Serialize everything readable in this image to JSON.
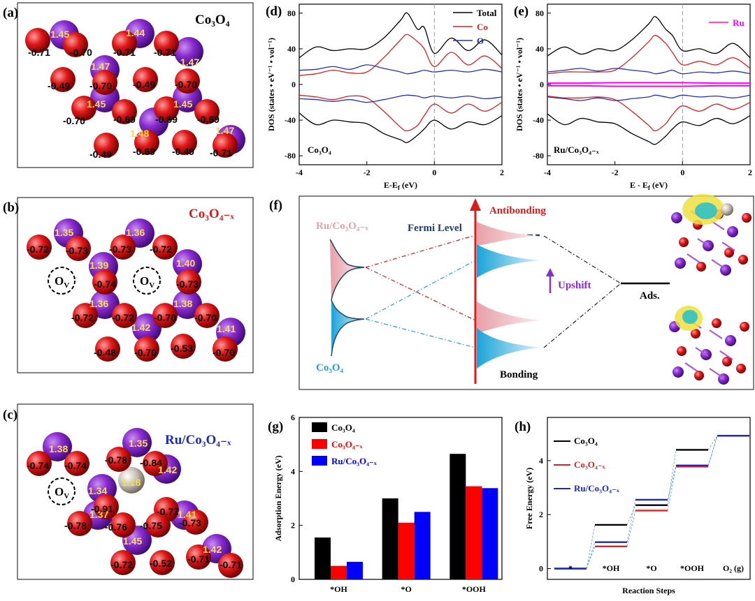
{
  "panels": {
    "a": {
      "label": "(a)",
      "title": "Co₃O₄",
      "charges_yellow": [
        "1.45",
        "1.44",
        "1.47",
        "1.47",
        "1.45",
        "1.45",
        "1.48",
        "1.47"
      ],
      "charges_black": [
        "-0.71",
        "-0.70",
        "-0.71",
        "-0.71",
        "-0.49",
        "-0.70",
        "-0.49",
        "-0.70",
        "-0.70",
        "-0.69",
        "-0.69",
        "-0.69",
        "-0.49",
        "-0.69",
        "-0.49",
        "-0.71"
      ]
    },
    "b": {
      "label": "(b)",
      "title": "Co₃O₄₋ₓ",
      "vacancy": "O",
      "charges_yellow": [
        "1.35",
        "1.36",
        "1.39",
        "1.40",
        "1.36",
        "1.38",
        "1.42",
        "1.41"
      ],
      "charges_black": [
        "-0.72",
        "-0.73",
        "-0.73",
        "-0.72",
        "-0.74",
        "-0.73",
        "-0.72",
        "-0.72",
        "-0.70",
        "-0.70",
        "-0.48",
        "-0.70",
        "-0.53",
        "-0.70"
      ]
    },
    "c": {
      "label": "(c)",
      "title": "Ru/Co₃O₄₋ₓ",
      "vacancy": "O",
      "charges_yellow": [
        "1.38",
        "1.35",
        "1.34",
        "1.18",
        "1.42",
        "1.37",
        "1.41",
        "1.45",
        "1.42"
      ],
      "charges_black": [
        "-0.74",
        "-0.74",
        "-0.78",
        "-0.84",
        "-0.91",
        "-0.77",
        "-0.78",
        "-0.76",
        "-0.75",
        "-0.73",
        "-0.72",
        "-0.52",
        "-0.71",
        "-0.71"
      ]
    },
    "f": {
      "label": "(f)",
      "labels": {
        "ru": "Ru/Co₃O₄₋ₓ",
        "fermi": "Fermi Level",
        "antibonding": "Antibonding",
        "upshift": "Upshift",
        "ads": "Ads.",
        "co": "Co₃O₄",
        "bonding": "Bonding"
      }
    }
  },
  "chart_data": [
    {
      "id": "d",
      "label": "(d)",
      "type": "line",
      "xlabel": "E-E",
      "xlabel_sub": "f",
      "xlabel_unit": " (eV)",
      "ylabel": "DOS (states • eV⁻¹ • vol⁻¹)",
      "xlim": [
        -4,
        2
      ],
      "ylim": [
        -90,
        90
      ],
      "xticks": [
        -4,
        -2,
        0,
        2
      ],
      "yticks": [
        -80,
        -40,
        0,
        40,
        80
      ],
      "annotation": "Co₃O₄",
      "legend": [
        "Total",
        "Co",
        "O"
      ],
      "series": [
        {
          "name": "Total",
          "color": "#000000",
          "x": [
            -4,
            -3.5,
            -3,
            -2.5,
            -2,
            -1.5,
            -1,
            -0.8,
            -0.5,
            -0.3,
            0,
            0.5,
            1,
            1.5,
            2
          ],
          "up": [
            30,
            42,
            38,
            40,
            40,
            52,
            72,
            80,
            62,
            64,
            35,
            52,
            38,
            50,
            33
          ],
          "down": [
            -32,
            -45,
            -40,
            -42,
            -44,
            -55,
            -62,
            -65,
            -57,
            -50,
            -40,
            -50,
            -42,
            -45,
            -35
          ]
        },
        {
          "name": "Co",
          "color": "#e02020",
          "x": [
            -4,
            -3.5,
            -3,
            -2.5,
            -2,
            -1.5,
            -1,
            -0.8,
            -0.5,
            -0.3,
            0,
            0.5,
            1,
            1.5,
            2
          ],
          "up": [
            10,
            12,
            16,
            13,
            14,
            30,
            50,
            56,
            48,
            40,
            20,
            36,
            22,
            32,
            18
          ],
          "down": [
            -12,
            -14,
            -17,
            -13,
            -15,
            -30,
            -48,
            -52,
            -46,
            -35,
            -22,
            -32,
            -22,
            -30,
            -20
          ]
        },
        {
          "name": "O",
          "color": "#2030c0",
          "x": [
            -4,
            -3.5,
            -3,
            -2.5,
            -2,
            -1.5,
            -1,
            -0.8,
            -0.5,
            -0.3,
            0,
            0.5,
            1,
            1.5,
            2
          ],
          "up": [
            16,
            17,
            20,
            17,
            22,
            18,
            14,
            12,
            14,
            16,
            14,
            16,
            14,
            17,
            14
          ],
          "down": [
            -16,
            -17,
            -19,
            -17,
            -20,
            -17,
            -13,
            -12,
            -13,
            -15,
            -13,
            -15,
            -13,
            -16,
            -14
          ]
        }
      ]
    },
    {
      "id": "e",
      "label": "(e)",
      "type": "line",
      "xlabel": "E - E",
      "xlabel_sub": "f",
      "xlabel_unit": " (eV)",
      "ylabel": "DOS (states • eV⁻¹ • vol⁻¹)",
      "xlim": [
        -4,
        2
      ],
      "ylim": [
        -90,
        90
      ],
      "xticks": [
        -4,
        -2,
        0,
        2
      ],
      "yticks": [
        -80,
        -40,
        0,
        40,
        80
      ],
      "annotation": "Ru/Co₃O₄₋ₓ",
      "legend": [
        "Ru"
      ],
      "series": [
        {
          "name": "Total",
          "color": "#000000",
          "x": [
            -4,
            -3.5,
            -3,
            -2.5,
            -2,
            -1.5,
            -1,
            -0.8,
            -0.5,
            -0.3,
            0,
            0.5,
            1,
            1.5,
            2
          ],
          "up": [
            32,
            42,
            34,
            40,
            38,
            50,
            68,
            76,
            62,
            55,
            38,
            40,
            35,
            46,
            30
          ],
          "down": [
            -33,
            -45,
            -38,
            -42,
            -44,
            -55,
            -64,
            -67,
            -58,
            -50,
            -42,
            -46,
            -38,
            -44,
            -35
          ]
        },
        {
          "name": "Co",
          "color": "#e02020",
          "x": [
            -4,
            -3.5,
            -3,
            -2.5,
            -2,
            -1.5,
            -1,
            -0.8,
            -0.5,
            -0.3,
            0,
            0.5,
            1,
            1.5,
            2
          ],
          "up": [
            12,
            14,
            14,
            14,
            16,
            30,
            48,
            55,
            46,
            36,
            22,
            26,
            22,
            30,
            18
          ],
          "down": [
            -13,
            -15,
            -15,
            -14,
            -17,
            -30,
            -46,
            -52,
            -44,
            -34,
            -24,
            -30,
            -22,
            -28,
            -20
          ]
        },
        {
          "name": "O",
          "color": "#2030c0",
          "x": [
            -4,
            -3.5,
            -3,
            -2.5,
            -2,
            -1.5,
            -1,
            -0.8,
            -0.5,
            -0.3,
            0,
            0.5,
            1,
            1.5,
            2
          ],
          "up": [
            14,
            16,
            18,
            15,
            18,
            16,
            14,
            12,
            14,
            16,
            12,
            14,
            13,
            15,
            12
          ],
          "down": [
            -14,
            -16,
            -18,
            -15,
            -18,
            -16,
            -14,
            -12,
            -14,
            -15,
            -12,
            -14,
            -13,
            -15,
            -12
          ]
        },
        {
          "name": "Ru",
          "color": "#ff00ff",
          "x": [
            -4,
            -3,
            -2,
            -1,
            0,
            1,
            2
          ],
          "up": [
            1.5,
            1.5,
            2,
            2,
            2,
            1.5,
            1.5
          ],
          "down": [
            -1.5,
            -1.5,
            -2,
            -2,
            -2,
            -1.5,
            -1.5
          ]
        }
      ]
    },
    {
      "id": "g",
      "label": "(g)",
      "type": "bar",
      "categories": [
        "*OH",
        "*O",
        "*OOH"
      ],
      "ylabel": "Adsorption Energy (eV)",
      "ylim": [
        0,
        6
      ],
      "yticks": [
        0,
        2,
        4,
        6
      ],
      "series": [
        {
          "name": "Co₃O₄",
          "color": "#000000",
          "values": [
            1.55,
            3.0,
            4.65
          ]
        },
        {
          "name": "Co₃O₄₋ₓ",
          "color": "#ff0000",
          "values": [
            0.5,
            2.1,
            3.45
          ]
        },
        {
          "name": "Ru/Co₃O₄₋ₓ",
          "color": "#0000ff",
          "values": [
            0.65,
            2.5,
            3.38
          ]
        }
      ]
    },
    {
      "id": "h",
      "label": "(h)",
      "type": "line",
      "categories": [
        "*",
        "*OH",
        "*O",
        "*OOH",
        "O₂ (g)"
      ],
      "xlabel": "Reaction Steps",
      "ylabel": "Free Energy (eV)",
      "ylim": [
        -0.4,
        5.6
      ],
      "yticks": [
        0,
        2,
        4
      ],
      "series": [
        {
          "name": "Co₃O₄",
          "color": "#000000",
          "values": [
            0,
            1.62,
            2.35,
            4.4,
            4.92
          ]
        },
        {
          "name": "Co₃O₄₋ₓ",
          "color": "#e02020",
          "values": [
            0,
            0.82,
            2.15,
            3.78,
            4.92
          ]
        },
        {
          "name": "Ru/Co₃O₄₋ₓ",
          "color": "#1a28c8",
          "values": [
            0,
            0.98,
            2.55,
            3.82,
            4.92
          ]
        }
      ]
    }
  ],
  "colors": {
    "co_atom": "#8a2bd0",
    "o_atom": "#e01818",
    "ru_atom": "#c8c0b8",
    "fill_blue": "#1aa3d8",
    "fill_pink": "#e8a0a8"
  }
}
